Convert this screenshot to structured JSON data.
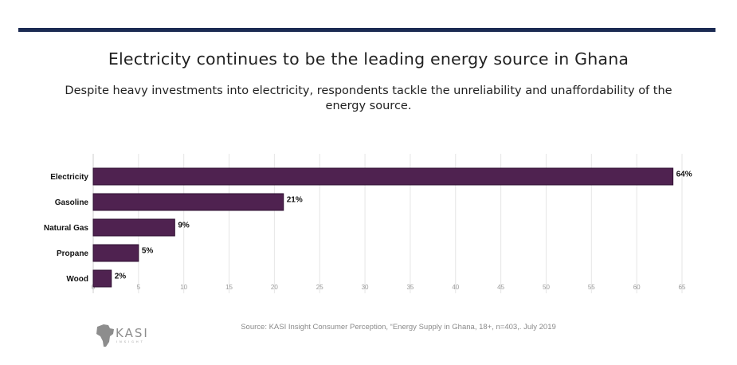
{
  "page": {
    "title": "Electricity continues to be the leading energy source in Ghana",
    "subtitle": "Despite heavy investments into electricity, respondents tackle the unreliability and unaffordability of the energy source.",
    "source": "Source: KASI Insight Consumer Perception, “Energy Supply in Ghana, 18+, n=403,. July 2019",
    "logo_text": "KASI",
    "logo_tagline": "INSIGHT"
  },
  "colors": {
    "bar": "#4f2250",
    "bar_stroke": "#2e0f30",
    "grid": "#e6e6e6",
    "tick": "#9a9a9a",
    "rule": "#1b2a52"
  },
  "chart_data": {
    "type": "bar",
    "orientation": "horizontal",
    "categories": [
      "Electricity",
      "Gasoline",
      "Natural Gas",
      "Propane",
      "Wood"
    ],
    "values": [
      64,
      21,
      9,
      5,
      2
    ],
    "data_labels": [
      "64%",
      "21%",
      "9%",
      "5%",
      "2%"
    ],
    "xlim": [
      0,
      65
    ],
    "xticks": [
      0,
      5,
      10,
      15,
      20,
      25,
      30,
      35,
      40,
      45,
      50,
      55,
      60,
      65
    ],
    "grid": true,
    "legend": "none"
  }
}
